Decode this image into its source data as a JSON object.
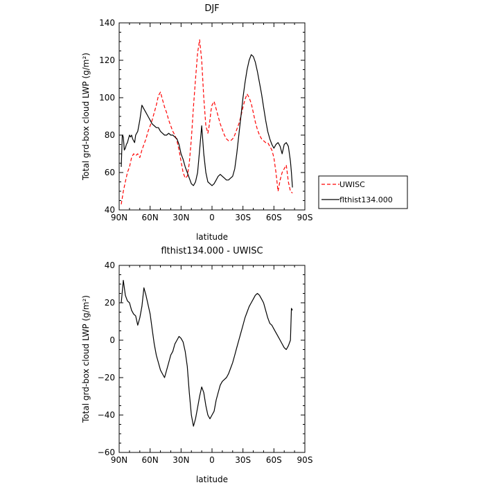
{
  "chart_data": [
    {
      "type": "line",
      "title": "DJF",
      "xlabel": "latitude",
      "ylabel": "Total grd-box cloud LWP (g/m²)",
      "xlim": [
        90,
        -90
      ],
      "ylim": [
        40,
        140
      ],
      "xticks": [
        90,
        60,
        30,
        0,
        -30,
        -60,
        -90
      ],
      "xtick_labels": [
        "90N",
        "60N",
        "30N",
        "0",
        "30S",
        "60S",
        "90S"
      ],
      "yticks": [
        40,
        60,
        80,
        100,
        120,
        140
      ],
      "ytick_labels": [
        "40",
        "60",
        "80",
        "100",
        "120",
        "140"
      ],
      "legend_position": "right",
      "series": [
        {
          "name": "UWISC",
          "color": "#ff0000",
          "dash": "dashed",
          "x": [
            88,
            86,
            84,
            82,
            80,
            78,
            76,
            74,
            72,
            70,
            68,
            66,
            64,
            62,
            60,
            58,
            56,
            54,
            52,
            50,
            48,
            46,
            44,
            42,
            40,
            38,
            36,
            34,
            32,
            30,
            28,
            26,
            24,
            22,
            20,
            18,
            16,
            14,
            12,
            10,
            8,
            6,
            5,
            4,
            3,
            2,
            1,
            0,
            -2,
            -4,
            -6,
            -8,
            -10,
            -12,
            -14,
            -16,
            -18,
            -20,
            -22,
            -24,
            -26,
            -28,
            -30,
            -32,
            -34,
            -36,
            -38,
            -40,
            -42,
            -44,
            -46,
            -48,
            -50,
            -52,
            -54,
            -56,
            -58,
            -60,
            -62,
            -64,
            -66,
            -68,
            -70,
            -72,
            -74,
            -76,
            -78
          ],
          "values": [
            43,
            50,
            55,
            60,
            63,
            68,
            70,
            69,
            70,
            68,
            72,
            75,
            78,
            82,
            85,
            88,
            92,
            96,
            101,
            103,
            99,
            95,
            92,
            88,
            85,
            82,
            80,
            77,
            72,
            66,
            60,
            57,
            58,
            65,
            78,
            95,
            110,
            124,
            131,
            120,
            100,
            85,
            83,
            81,
            84,
            88,
            93,
            96,
            98,
            94,
            90,
            86,
            83,
            80,
            78,
            77,
            77,
            78,
            80,
            83,
            86,
            90,
            95,
            99,
            102,
            100,
            97,
            92,
            87,
            83,
            80,
            78,
            77,
            76,
            76,
            74,
            72,
            68,
            60,
            50,
            56,
            60,
            62,
            64,
            55,
            50,
            49
          ]
        },
        {
          "name": "flthist134.000",
          "color": "#000000",
          "dash": "solid",
          "x": [
            88,
            87,
            86,
            85,
            84,
            83,
            82,
            81,
            80,
            79,
            78,
            77,
            76,
            75,
            74,
            72,
            70,
            68,
            66,
            64,
            62,
            60,
            58,
            56,
            54,
            52,
            50,
            48,
            46,
            44,
            42,
            40,
            38,
            36,
            34,
            32,
            30,
            28,
            26,
            24,
            22,
            20,
            18,
            16,
            14,
            12,
            10,
            8,
            6,
            4,
            2,
            0,
            -2,
            -4,
            -6,
            -8,
            -10,
            -12,
            -14,
            -16,
            -18,
            -20,
            -22,
            -24,
            -26,
            -28,
            -30,
            -32,
            -34,
            -36,
            -38,
            -40,
            -42,
            -44,
            -46,
            -48,
            -50,
            -52,
            -54,
            -56,
            -58,
            -60,
            -62,
            -64,
            -66,
            -68,
            -70,
            -72,
            -74,
            -76,
            -77,
            -78
          ],
          "values": [
            63,
            80,
            79,
            72,
            73,
            75,
            76,
            78,
            80,
            79,
            80,
            78,
            77,
            76,
            80,
            82,
            88,
            96,
            94,
            92,
            90,
            88,
            86,
            85,
            84,
            84,
            82,
            81,
            80,
            80,
            81,
            80,
            80,
            79,
            78,
            75,
            70,
            67,
            63,
            60,
            57,
            54,
            53,
            55,
            60,
            72,
            85,
            70,
            60,
            55,
            54,
            53,
            54,
            56,
            58,
            59,
            58,
            57,
            56,
            56,
            57,
            58,
            62,
            70,
            80,
            90,
            100,
            108,
            115,
            120,
            123,
            122,
            119,
            114,
            108,
            102,
            95,
            88,
            82,
            78,
            75,
            73,
            75,
            76,
            74,
            70,
            75,
            76,
            74,
            66,
            60,
            52
          ]
        }
      ]
    },
    {
      "type": "line",
      "title": "flthist134.000 - UWISC",
      "xlabel": "latitude",
      "ylabel": "Total grd-box cloud LWP (g/m²)",
      "xlim": [
        90,
        -90
      ],
      "ylim": [
        -60,
        40
      ],
      "xticks": [
        90,
        60,
        30,
        0,
        -30,
        -60,
        -90
      ],
      "xtick_labels": [
        "90N",
        "60N",
        "30N",
        "0",
        "30S",
        "60S",
        "90S"
      ],
      "yticks": [
        -60,
        -40,
        -20,
        0,
        20,
        40
      ],
      "ytick_labels": [
        "−60",
        "−40",
        "−20",
        "0",
        "20",
        "40"
      ],
      "series": [
        {
          "color": "#000000",
          "dash": "solid",
          "x": [
            88,
            86,
            84,
            82,
            80,
            78,
            76,
            74,
            72,
            70,
            68,
            66,
            64,
            62,
            60,
            58,
            56,
            54,
            52,
            50,
            48,
            46,
            44,
            42,
            40,
            38,
            36,
            34,
            32,
            30,
            28,
            26,
            24,
            22,
            20,
            18,
            16,
            14,
            12,
            10,
            8,
            6,
            4,
            2,
            0,
            -2,
            -4,
            -6,
            -8,
            -10,
            -12,
            -14,
            -16,
            -18,
            -20,
            -22,
            -24,
            -26,
            -28,
            -30,
            -32,
            -34,
            -36,
            -38,
            -40,
            -42,
            -44,
            -46,
            -48,
            -50,
            -52,
            -54,
            -56,
            -58,
            -60,
            -62,
            -64,
            -66,
            -68,
            -70,
            -72,
            -74,
            -76,
            -77,
            -78
          ],
          "values": [
            20,
            32,
            24,
            21,
            20,
            16,
            14,
            13,
            8,
            12,
            18,
            28,
            24,
            19,
            14,
            6,
            -2,
            -8,
            -12,
            -16,
            -18,
            -20,
            -16,
            -12,
            -8,
            -6,
            -2,
            0,
            2,
            1,
            -1,
            -6,
            -14,
            -28,
            -40,
            -46,
            -42,
            -36,
            -30,
            -25,
            -28,
            -35,
            -40,
            -42,
            -40,
            -38,
            -32,
            -28,
            -24,
            -22,
            -21,
            -20,
            -18,
            -15,
            -12,
            -8,
            -4,
            0,
            4,
            8,
            12,
            15,
            18,
            20,
            22,
            24,
            25,
            24,
            22,
            20,
            16,
            12,
            9,
            8,
            6,
            4,
            2,
            0,
            -2,
            -4,
            -5,
            -3,
            0,
            17,
            16
          ]
        }
      ]
    }
  ]
}
